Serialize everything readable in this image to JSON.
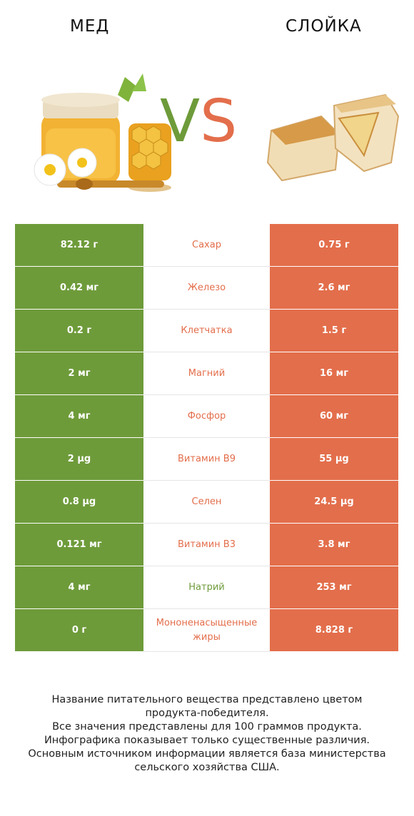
{
  "header": {
    "left_title": "МЕД",
    "right_title": "СЛОЙКА",
    "vs_v": "V",
    "vs_s": "S"
  },
  "colors": {
    "left": "#6e9b3a",
    "right": "#e36e4b"
  },
  "rows": [
    {
      "left": "82.12 г",
      "name": "Сахар",
      "right": "0.75 г",
      "winner": "right"
    },
    {
      "left": "0.42 мг",
      "name": "Железо",
      "right": "2.6 мг",
      "winner": "right"
    },
    {
      "left": "0.2 г",
      "name": "Клетчатка",
      "right": "1.5 г",
      "winner": "right"
    },
    {
      "left": "2 мг",
      "name": "Магний",
      "right": "16 мг",
      "winner": "right"
    },
    {
      "left": "4 мг",
      "name": "Фосфор",
      "right": "60 мг",
      "winner": "right"
    },
    {
      "left": "2 µg",
      "name": "Витамин B9",
      "right": "55 µg",
      "winner": "right"
    },
    {
      "left": "0.8 µg",
      "name": "Селен",
      "right": "24.5 µg",
      "winner": "right"
    },
    {
      "left": "0.121 мг",
      "name": "Витамин B3",
      "right": "3.8 мг",
      "winner": "right"
    },
    {
      "left": "4 мг",
      "name": "Натрий",
      "right": "253 мг",
      "winner": "left"
    },
    {
      "left": "0 г",
      "name": "Мононенасыщенные жиры",
      "right": "8.828 г",
      "winner": "right"
    }
  ],
  "footer": {
    "line1": "Название питательного вещества представлено цветом",
    "line2": "продукта-победителя.",
    "line3": "Все значения представлены для 100 граммов продукта.",
    "line4": "Инфографика показывает только существенные различия.",
    "line5": "Основным источником информации является база министерства",
    "line6": "сельского хозяйства США."
  }
}
